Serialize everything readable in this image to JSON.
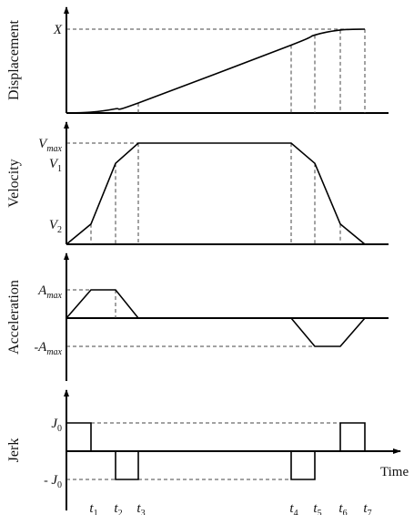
{
  "chart_data": {
    "type": "line",
    "xlabel": "Time",
    "time_ticks": [
      {
        "name": "t",
        "sub": "1",
        "t": 1
      },
      {
        "name": "t",
        "sub": "2",
        "t": 2
      },
      {
        "name": "t",
        "sub": "3",
        "t": 3
      },
      {
        "name": "t",
        "sub": "4",
        "t": 4
      },
      {
        "name": "t",
        "sub": "5",
        "t": 5
      },
      {
        "name": "t",
        "sub": "6",
        "t": 6
      },
      {
        "name": "t",
        "sub": "7",
        "t": 7
      }
    ],
    "panels": [
      {
        "ylabel": "Displacement",
        "levels": [
          {
            "name": "X",
            "sub": "",
            "value": 1.0
          }
        ],
        "series": [
          {
            "t": 0,
            "v": 0.0
          },
          {
            "t": 1,
            "v": 0.01
          },
          {
            "t": 2,
            "v": 0.05
          },
          {
            "t": 3,
            "v": 0.12
          },
          {
            "t": 4,
            "v": 0.81
          },
          {
            "t": 5,
            "v": 0.93
          },
          {
            "t": 6,
            "v": 0.99
          },
          {
            "t": 7,
            "v": 1.0
          }
        ],
        "ylim": [
          0,
          1
        ]
      },
      {
        "ylabel": "Velocity",
        "levels": [
          {
            "name": "V",
            "sub": "max",
            "value": 1.0
          },
          {
            "name": "V",
            "sub": "1",
            "value": 0.8
          },
          {
            "name": "V",
            "sub": "2",
            "value": 0.2
          }
        ],
        "series": [
          {
            "t": 0,
            "v": 0.0
          },
          {
            "t": 1,
            "v": 0.2
          },
          {
            "t": 2,
            "v": 0.8
          },
          {
            "t": 3,
            "v": 1.0
          },
          {
            "t": 4,
            "v": 1.0
          },
          {
            "t": 5,
            "v": 0.8
          },
          {
            "t": 6,
            "v": 0.2
          },
          {
            "t": 7,
            "v": 0.0
          }
        ],
        "ylim": [
          0,
          1
        ]
      },
      {
        "ylabel": "Acceleration",
        "levels": [
          {
            "name": "A",
            "sub": "max",
            "prefix": "",
            "value": 1.0
          },
          {
            "name": "A",
            "sub": "max",
            "prefix": "-",
            "value": -1.0
          }
        ],
        "series": [
          {
            "t": 0,
            "v": 0
          },
          {
            "t": 1,
            "v": 1
          },
          {
            "t": 2,
            "v": 1
          },
          {
            "t": 3,
            "v": 0
          },
          {
            "t": 4,
            "v": 0
          },
          {
            "t": 5,
            "v": -1
          },
          {
            "t": 6,
            "v": -1
          },
          {
            "t": 7,
            "v": 0
          }
        ],
        "ylim": [
          -1,
          1
        ]
      },
      {
        "ylabel": "Jerk",
        "levels": [
          {
            "name": "J",
            "sub": "0",
            "prefix": "",
            "value": 1.0
          },
          {
            "name": "J",
            "sub": "0",
            "prefix": "- ",
            "value": -1.0
          }
        ],
        "series": [
          {
            "t": 0,
            "v": 1
          },
          {
            "t": 1,
            "v": 1
          },
          {
            "t": 1,
            "v": 0
          },
          {
            "t": 2,
            "v": 0
          },
          {
            "t": 2,
            "v": -1
          },
          {
            "t": 3,
            "v": -1
          },
          {
            "t": 3,
            "v": 0
          },
          {
            "t": 4,
            "v": 0
          },
          {
            "t": 4,
            "v": -1
          },
          {
            "t": 5,
            "v": -1
          },
          {
            "t": 5,
            "v": 0
          },
          {
            "t": 6,
            "v": 0
          },
          {
            "t": 6,
            "v": 1
          },
          {
            "t": 7,
            "v": 1
          },
          {
            "t": 7,
            "v": 0
          }
        ],
        "ylim": [
          -1,
          1
        ]
      }
    ],
    "grid": false,
    "legend": "none"
  }
}
